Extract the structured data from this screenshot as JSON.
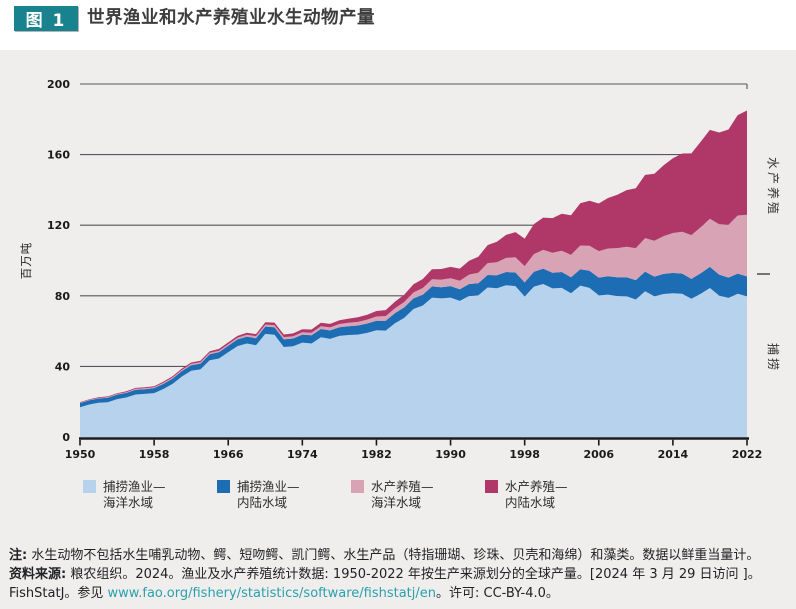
{
  "title": {
    "figure_label": "图 1",
    "text": "世界渔业和水产养殖业水生动物产量"
  },
  "chart_data": {
    "type": "area",
    "stacked": true,
    "title": "世界渔业和水产养殖业水生动物产量",
    "xlabel": "",
    "ylabel": "百万吨",
    "ylim": [
      0,
      200
    ],
    "yticks": [
      0,
      40,
      80,
      120,
      160,
      200
    ],
    "xticks": [
      1950,
      1958,
      1966,
      1974,
      1982,
      1990,
      1998,
      2006,
      2014,
      2022
    ],
    "grid": "horizontal",
    "legend_position": "bottom",
    "years": [
      1950,
      1951,
      1952,
      1953,
      1954,
      1955,
      1956,
      1957,
      1958,
      1959,
      1960,
      1961,
      1962,
      1963,
      1964,
      1965,
      1966,
      1967,
      1968,
      1969,
      1970,
      1971,
      1972,
      1973,
      1974,
      1975,
      1976,
      1977,
      1978,
      1979,
      1980,
      1981,
      1982,
      1983,
      1984,
      1985,
      1986,
      1987,
      1988,
      1989,
      1990,
      1991,
      1992,
      1993,
      1994,
      1995,
      1996,
      1997,
      1998,
      1999,
      2000,
      2001,
      2002,
      2003,
      2004,
      2005,
      2006,
      2007,
      2008,
      2009,
      2010,
      2011,
      2012,
      2013,
      2014,
      2015,
      2016,
      2017,
      2018,
      2019,
      2020,
      2021,
      2022
    ],
    "series": [
      {
        "name": "捕捞渔业—海洋水域",
        "color": "#b6d2ec",
        "values": [
          16.9,
          18.4,
          19.4,
          19.7,
          21.5,
          22.4,
          24.1,
          24.4,
          24.9,
          27.2,
          30.1,
          34.3,
          37.5,
          38.3,
          43.5,
          44.5,
          48.0,
          51.5,
          53.0,
          52.0,
          58.4,
          57.9,
          51.0,
          51.4,
          53.5,
          53.0,
          56.5,
          55.6,
          57.3,
          57.8,
          58.0,
          59.0,
          60.5,
          60.3,
          64.5,
          67.5,
          72.5,
          74.5,
          79.0,
          78.5,
          79.0,
          77.1,
          79.9,
          80.2,
          84.7,
          84.3,
          86.0,
          85.5,
          79.6,
          85.2,
          86.7,
          84.2,
          84.5,
          81.5,
          85.8,
          84.5,
          80.2,
          80.7,
          79.9,
          79.7,
          77.9,
          82.6,
          79.7,
          81.0,
          81.5,
          81.2,
          78.3,
          81.2,
          84.4,
          80.1,
          78.8,
          81.2,
          79.7
        ]
      },
      {
        "name": "捕捞渔业—内陆水域",
        "color": "#1d6db4",
        "values": [
          2.3,
          2.4,
          2.4,
          2.5,
          2.5,
          2.6,
          2.7,
          2.7,
          2.8,
          2.9,
          3.0,
          3.1,
          3.2,
          3.3,
          3.4,
          3.6,
          3.7,
          3.8,
          3.9,
          4.0,
          4.2,
          4.3,
          4.3,
          4.4,
          4.5,
          4.6,
          4.7,
          4.8,
          4.9,
          5.0,
          5.2,
          5.3,
          5.4,
          5.6,
          5.7,
          5.9,
          6.0,
          6.1,
          6.3,
          6.4,
          6.5,
          6.6,
          6.8,
          6.9,
          7.1,
          7.3,
          7.5,
          7.7,
          8.0,
          8.4,
          8.7,
          8.9,
          9.0,
          9.0,
          9.2,
          9.7,
          10.1,
          10.4,
          10.6,
          10.8,
          11.0,
          11.1,
          11.2,
          11.4,
          11.5,
          11.4,
          11.3,
          11.6,
          12.0,
          11.9,
          11.5,
          11.4,
          11.3
        ]
      },
      {
        "name": "水产养殖—海洋水域",
        "color": "#d8a3b5",
        "values": [
          0.3,
          0.3,
          0.3,
          0.4,
          0.4,
          0.4,
          0.5,
          0.5,
          0.5,
          0.6,
          0.6,
          0.6,
          0.7,
          0.7,
          0.8,
          0.8,
          0.9,
          0.9,
          1.0,
          1.1,
          1.1,
          1.2,
          1.3,
          1.3,
          1.4,
          1.5,
          1.6,
          1.7,
          1.8,
          1.9,
          2.0,
          2.2,
          2.4,
          2.6,
          2.8,
          3.1,
          3.4,
          3.8,
          4.1,
          4.3,
          4.5,
          4.8,
          5.3,
          6.0,
          6.7,
          7.4,
          8.0,
          8.6,
          9.2,
          10.0,
          10.6,
          11.3,
          12.0,
          12.7,
          13.5,
          14.2,
          15.0,
          15.7,
          16.5,
          17.3,
          18.1,
          19.0,
          20.3,
          21.4,
          22.6,
          23.7,
          24.8,
          26.0,
          27.3,
          28.5,
          29.9,
          32.9,
          34.9
        ]
      },
      {
        "name": "水产养殖—内陆水域",
        "color": "#b03869",
        "values": [
          0.3,
          0.3,
          0.4,
          0.4,
          0.4,
          0.5,
          0.5,
          0.6,
          0.6,
          0.7,
          0.7,
          0.8,
          0.8,
          0.9,
          0.9,
          1.0,
          1.0,
          1.1,
          1.2,
          1.2,
          1.3,
          1.4,
          1.5,
          1.6,
          1.7,
          1.8,
          1.9,
          2.0,
          2.2,
          2.4,
          2.6,
          2.8,
          3.1,
          3.4,
          3.7,
          4.1,
          4.6,
          5.1,
          5.6,
          6.0,
          6.4,
          6.9,
          7.9,
          9.0,
          10.2,
          11.6,
          13.0,
          14.3,
          15.6,
          17.0,
          18.3,
          19.6,
          21.0,
          22.4,
          23.9,
          25.4,
          27.0,
          28.6,
          30.3,
          32.1,
          33.9,
          35.8,
          38.0,
          40.2,
          42.3,
          44.3,
          46.3,
          48.5,
          50.3,
          52.0,
          54.0,
          56.9,
          59.1
        ]
      }
    ],
    "right_labels": [
      {
        "text": "水产养殖"
      },
      {
        "text": "捕捞"
      }
    ]
  },
  "legend": {
    "items": [
      {
        "line1": "捕捞渔业—",
        "line2": "海洋水域"
      },
      {
        "line1": "捕捞渔业—",
        "line2": "内陆水域"
      },
      {
        "line1": "水产养殖—",
        "line2": "海洋水域"
      },
      {
        "line1": "水产养殖—",
        "line2": "内陆水域"
      }
    ]
  },
  "footer": {
    "note_label": "注:",
    "note_text": " 水生动物不包括水生哺乳动物、鳄、短吻鳄、凯门鳄、水生产品（特指珊瑚、珍珠、贝壳和海绵）和藻类。数据以鲜重当量计。",
    "source_label": "资料来源:",
    "source_text": " 粮农组织。2024。渔业及水产养殖统计数据: 1950-2022 年按生产来源划分的全球产量。[2024 年 3 月 29 日访问 ]。",
    "line3_pre": "FishStatJ。参见 ",
    "link_text": "www.fao.org/fishery/statistics/software/fishstatj/en",
    "line3_post": "。许可: CC-BY-4.0。"
  },
  "colors": {
    "accent_teal": "#18828f",
    "link_teal": "#2ba0ad",
    "panel_bg": "#efeeec",
    "header_bg": "#ffffff"
  }
}
